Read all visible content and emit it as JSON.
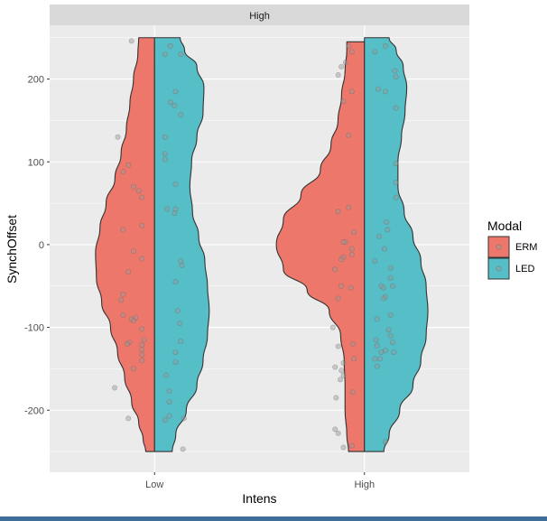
{
  "colors": {
    "panel_bg": "#ebebeb",
    "grid": "#ffffff",
    "strip_bg": "#d9d9d9",
    "erm": "#ed776a",
    "led": "#55bec6",
    "outline": "#333333",
    "jitter": "#8a8a8a"
  },
  "chart_data": {
    "type": "split-violin",
    "facet_label": "High",
    "xlabel": "Intens",
    "ylabel": "SynchOffset",
    "categories": [
      "Low",
      "High"
    ],
    "ylim": [
      -275,
      265
    ],
    "yticks": [
      200,
      100,
      0,
      -100,
      -200
    ],
    "grid": true,
    "legend": {
      "title": "Modal",
      "placement": "right",
      "items": [
        {
          "label": "ERM",
          "color": "#ed776a"
        },
        {
          "label": "LED",
          "color": "#55bec6"
        }
      ]
    },
    "violins": [
      {
        "category": "Low",
        "modal": "ERM",
        "side": "left",
        "profile": [
          [
            -250,
            0.1
          ],
          [
            -235,
            0.13
          ],
          [
            -215,
            0.18
          ],
          [
            -190,
            0.26
          ],
          [
            -160,
            0.34
          ],
          [
            -130,
            0.42
          ],
          [
            -100,
            0.5
          ],
          [
            -70,
            0.6
          ],
          [
            -40,
            0.66
          ],
          [
            -10,
            0.67
          ],
          [
            20,
            0.62
          ],
          [
            50,
            0.55
          ],
          [
            80,
            0.45
          ],
          [
            110,
            0.38
          ],
          [
            140,
            0.32
          ],
          [
            170,
            0.28
          ],
          [
            200,
            0.24
          ],
          [
            230,
            0.19
          ],
          [
            250,
            0.18
          ]
        ]
      },
      {
        "category": "Low",
        "modal": "LED",
        "side": "right",
        "profile": [
          [
            -250,
            0.2
          ],
          [
            -230,
            0.24
          ],
          [
            -200,
            0.36
          ],
          [
            -170,
            0.48
          ],
          [
            -140,
            0.55
          ],
          [
            -110,
            0.6
          ],
          [
            -80,
            0.62
          ],
          [
            -50,
            0.6
          ],
          [
            -20,
            0.57
          ],
          [
            10,
            0.5
          ],
          [
            40,
            0.43
          ],
          [
            70,
            0.4
          ],
          [
            100,
            0.42
          ],
          [
            130,
            0.48
          ],
          [
            160,
            0.55
          ],
          [
            190,
            0.56
          ],
          [
            215,
            0.48
          ],
          [
            235,
            0.34
          ],
          [
            250,
            0.29
          ]
        ]
      },
      {
        "category": "High",
        "modal": "ERM",
        "side": "left",
        "profile": [
          [
            -250,
            0.18
          ],
          [
            -230,
            0.2
          ],
          [
            -200,
            0.22
          ],
          [
            -170,
            0.22
          ],
          [
            -140,
            0.23
          ],
          [
            -110,
            0.27
          ],
          [
            -80,
            0.4
          ],
          [
            -55,
            0.65
          ],
          [
            -30,
            0.92
          ],
          [
            0,
            1.0
          ],
          [
            30,
            0.92
          ],
          [
            60,
            0.72
          ],
          [
            90,
            0.5
          ],
          [
            120,
            0.38
          ],
          [
            150,
            0.3
          ],
          [
            180,
            0.26
          ],
          [
            210,
            0.22
          ],
          [
            235,
            0.2
          ],
          [
            245,
            0.2
          ]
        ]
      },
      {
        "category": "High",
        "modal": "LED",
        "side": "right",
        "profile": [
          [
            -250,
            0.22
          ],
          [
            -230,
            0.28
          ],
          [
            -200,
            0.4
          ],
          [
            -170,
            0.55
          ],
          [
            -140,
            0.64
          ],
          [
            -110,
            0.7
          ],
          [
            -80,
            0.72
          ],
          [
            -50,
            0.7
          ],
          [
            -20,
            0.64
          ],
          [
            10,
            0.55
          ],
          [
            40,
            0.45
          ],
          [
            70,
            0.38
          ],
          [
            100,
            0.38
          ],
          [
            130,
            0.42
          ],
          [
            160,
            0.46
          ],
          [
            190,
            0.48
          ],
          [
            215,
            0.44
          ],
          [
            235,
            0.36
          ],
          [
            250,
            0.28
          ]
        ]
      }
    ],
    "points": [
      {
        "category": "Low",
        "dx": -0.35,
        "y": 130
      },
      {
        "category": "Low",
        "dx": -0.3,
        "y": 88
      },
      {
        "category": "Low",
        "dx": -0.25,
        "y": 96
      },
      {
        "category": "Low",
        "dx": -0.2,
        "y": 70
      },
      {
        "category": "Low",
        "dx": -0.15,
        "y": 65
      },
      {
        "category": "Low",
        "dx": -0.12,
        "y": 57
      },
      {
        "category": "Low",
        "dx": -0.3,
        "y": 18
      },
      {
        "category": "Low",
        "dx": -0.12,
        "y": 23
      },
      {
        "category": "Low",
        "dx": -0.2,
        "y": -8
      },
      {
        "category": "Low",
        "dx": -0.25,
        "y": -33
      },
      {
        "category": "Low",
        "dx": -0.12,
        "y": -17
      },
      {
        "category": "Low",
        "dx": -0.3,
        "y": -60
      },
      {
        "category": "Low",
        "dx": -0.32,
        "y": -67
      },
      {
        "category": "Low",
        "dx": -0.3,
        "y": -85
      },
      {
        "category": "Low",
        "dx": -0.22,
        "y": -90
      },
      {
        "category": "Low",
        "dx": -0.2,
        "y": -92
      },
      {
        "category": "Low",
        "dx": -0.18,
        "y": -88
      },
      {
        "category": "Low",
        "dx": -0.12,
        "y": -102
      },
      {
        "category": "Low",
        "dx": -0.1,
        "y": -115
      },
      {
        "category": "Low",
        "dx": -0.12,
        "y": -121
      },
      {
        "category": "Low",
        "dx": -0.24,
        "y": -118
      },
      {
        "category": "Low",
        "dx": -0.26,
        "y": -120
      },
      {
        "category": "Low",
        "dx": -0.12,
        "y": -127
      },
      {
        "category": "Low",
        "dx": -0.12,
        "y": -133
      },
      {
        "category": "Low",
        "dx": -0.12,
        "y": -140
      },
      {
        "category": "Low",
        "dx": -0.2,
        "y": -150
      },
      {
        "category": "Low",
        "dx": -0.38,
        "y": -173
      },
      {
        "category": "Low",
        "dx": -0.25,
        "y": -210
      },
      {
        "category": "Low",
        "dx": -0.22,
        "y": 246
      },
      {
        "category": "Low",
        "dx": 0.1,
        "y": 230
      },
      {
        "category": "Low",
        "dx": 0.25,
        "y": 230
      },
      {
        "category": "Low",
        "dx": 0.15,
        "y": 240
      },
      {
        "category": "Low",
        "dx": 0.15,
        "y": 172
      },
      {
        "category": "Low",
        "dx": 0.19,
        "y": 168
      },
      {
        "category": "Low",
        "dx": 0.2,
        "y": 185
      },
      {
        "category": "Low",
        "dx": 0.25,
        "y": 157
      },
      {
        "category": "Low",
        "dx": 0.1,
        "y": 130
      },
      {
        "category": "Low",
        "dx": 0.1,
        "y": 110
      },
      {
        "category": "Low",
        "dx": 0.1,
        "y": 103
      },
      {
        "category": "Low",
        "dx": 0.2,
        "y": 73
      },
      {
        "category": "Low",
        "dx": 0.12,
        "y": 43
      },
      {
        "category": "Low",
        "dx": 0.2,
        "y": 43
      },
      {
        "category": "Low",
        "dx": 0.19,
        "y": 38
      },
      {
        "category": "Low",
        "dx": 0.25,
        "y": -20
      },
      {
        "category": "Low",
        "dx": 0.26,
        "y": -25
      },
      {
        "category": "Low",
        "dx": 0.2,
        "y": -45
      },
      {
        "category": "Low",
        "dx": 0.22,
        "y": -80
      },
      {
        "category": "Low",
        "dx": 0.24,
        "y": -95
      },
      {
        "category": "Low",
        "dx": 0.25,
        "y": -117
      },
      {
        "category": "Low",
        "dx": 0.2,
        "y": -130
      },
      {
        "category": "Low",
        "dx": 0.2,
        "y": -142
      },
      {
        "category": "Low",
        "dx": 0.11,
        "y": -158
      },
      {
        "category": "Low",
        "dx": 0.14,
        "y": -177
      },
      {
        "category": "Low",
        "dx": 0.14,
        "y": -190
      },
      {
        "category": "Low",
        "dx": 0.1,
        "y": -212
      },
      {
        "category": "Low",
        "dx": 0.14,
        "y": -207
      },
      {
        "category": "Low",
        "dx": 0.28,
        "y": -210
      },
      {
        "category": "Low",
        "dx": 0.27,
        "y": -247
      },
      {
        "category": "High",
        "dx": -0.25,
        "y": 205
      },
      {
        "category": "High",
        "dx": -0.22,
        "y": 215
      },
      {
        "category": "High",
        "dx": -0.18,
        "y": 220
      },
      {
        "category": "High",
        "dx": -0.15,
        "y": 240
      },
      {
        "category": "High",
        "dx": -0.12,
        "y": 233
      },
      {
        "category": "High",
        "dx": -0.2,
        "y": 173
      },
      {
        "category": "High",
        "dx": -0.15,
        "y": 132
      },
      {
        "category": "High",
        "dx": -0.12,
        "y": 185
      },
      {
        "category": "High",
        "dx": -0.25,
        "y": 40
      },
      {
        "category": "High",
        "dx": -0.15,
        "y": 45
      },
      {
        "category": "High",
        "dx": -0.18,
        "y": 3
      },
      {
        "category": "High",
        "dx": -0.2,
        "y": 3
      },
      {
        "category": "High",
        "dx": -0.1,
        "y": 15
      },
      {
        "category": "High",
        "dx": -0.12,
        "y": -5
      },
      {
        "category": "High",
        "dx": -0.12,
        "y": -12
      },
      {
        "category": "High",
        "dx": -0.2,
        "y": -15
      },
      {
        "category": "High",
        "dx": -0.22,
        "y": -18
      },
      {
        "category": "High",
        "dx": -0.28,
        "y": -30
      },
      {
        "category": "High",
        "dx": -0.22,
        "y": -50
      },
      {
        "category": "High",
        "dx": -0.13,
        "y": -52
      },
      {
        "category": "High",
        "dx": -0.25,
        "y": -65
      },
      {
        "category": "High",
        "dx": -0.3,
        "y": -100
      },
      {
        "category": "High",
        "dx": -0.25,
        "y": -123
      },
      {
        "category": "High",
        "dx": -0.11,
        "y": -120
      },
      {
        "category": "High",
        "dx": -0.1,
        "y": -138
      },
      {
        "category": "High",
        "dx": -0.2,
        "y": -143
      },
      {
        "category": "High",
        "dx": -0.22,
        "y": -152
      },
      {
        "category": "High",
        "dx": -0.2,
        "y": -158
      },
      {
        "category": "High",
        "dx": -0.28,
        "y": -148
      },
      {
        "category": "High",
        "dx": -0.23,
        "y": -163
      },
      {
        "category": "High",
        "dx": -0.27,
        "y": -185
      },
      {
        "category": "High",
        "dx": -0.11,
        "y": -178
      },
      {
        "category": "High",
        "dx": -0.28,
        "y": -223
      },
      {
        "category": "High",
        "dx": -0.25,
        "y": -228
      },
      {
        "category": "High",
        "dx": -0.12,
        "y": -243
      },
      {
        "category": "High",
        "dx": -0.2,
        "y": -245
      },
      {
        "category": "High",
        "dx": 0.2,
        "y": 240
      },
      {
        "category": "High",
        "dx": 0.29,
        "y": 210
      },
      {
        "category": "High",
        "dx": 0.3,
        "y": 203
      },
      {
        "category": "High",
        "dx": 0.1,
        "y": 233
      },
      {
        "category": "High",
        "dx": 0.13,
        "y": 188
      },
      {
        "category": "High",
        "dx": 0.3,
        "y": 165
      },
      {
        "category": "High",
        "dx": 0.2,
        "y": 185
      },
      {
        "category": "High",
        "dx": 0.3,
        "y": 98
      },
      {
        "category": "High",
        "dx": 0.3,
        "y": 75
      },
      {
        "category": "High",
        "dx": 0.3,
        "y": 57
      },
      {
        "category": "High",
        "dx": 0.21,
        "y": 27
      },
      {
        "category": "High",
        "dx": 0.22,
        "y": 18
      },
      {
        "category": "High",
        "dx": 0.14,
        "y": 10
      },
      {
        "category": "High",
        "dx": 0.19,
        "y": -5
      },
      {
        "category": "High",
        "dx": 0.1,
        "y": -20
      },
      {
        "category": "High",
        "dx": 0.25,
        "y": -28
      },
      {
        "category": "High",
        "dx": 0.25,
        "y": -40
      },
      {
        "category": "High",
        "dx": 0.16,
        "y": -50
      },
      {
        "category": "High",
        "dx": 0.18,
        "y": -52
      },
      {
        "category": "High",
        "dx": 0.27,
        "y": -50
      },
      {
        "category": "High",
        "dx": 0.2,
        "y": -63
      },
      {
        "category": "High",
        "dx": 0.18,
        "y": -65
      },
      {
        "category": "High",
        "dx": 0.25,
        "y": -85
      },
      {
        "category": "High",
        "dx": 0.12,
        "y": -90
      },
      {
        "category": "High",
        "dx": 0.23,
        "y": -103
      },
      {
        "category": "High",
        "dx": 0.25,
        "y": -110
      },
      {
        "category": "High",
        "dx": 0.11,
        "y": -115
      },
      {
        "category": "High",
        "dx": 0.12,
        "y": -122
      },
      {
        "category": "High",
        "dx": 0.16,
        "y": -130
      },
      {
        "category": "High",
        "dx": 0.2,
        "y": -128
      },
      {
        "category": "High",
        "dx": 0.27,
        "y": -118
      },
      {
        "category": "High",
        "dx": 0.28,
        "y": -130
      },
      {
        "category": "High",
        "dx": 0.1,
        "y": -138
      },
      {
        "category": "High",
        "dx": 0.15,
        "y": -138
      },
      {
        "category": "High",
        "dx": 0.12,
        "y": -147
      },
      {
        "category": "High",
        "dx": 0.2,
        "y": -238
      }
    ]
  }
}
